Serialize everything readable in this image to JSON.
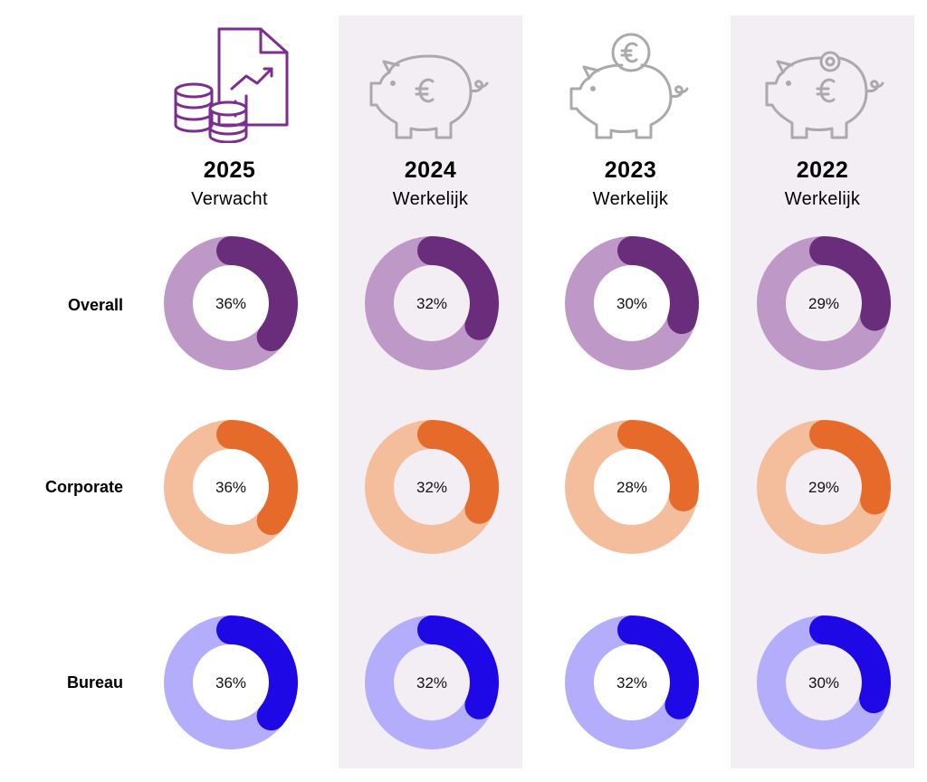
{
  "colors": {
    "overall": {
      "track": "#be98c6",
      "fill": "#6a2d7c"
    },
    "corporate": {
      "track": "#f4bd9c",
      "fill": "#e66b2b"
    },
    "bureau": {
      "track": "#b3adfb",
      "fill": "#1e08e6"
    },
    "column_highlight": "#f3eef4",
    "icon_active": "#7a2e8e",
    "icon_muted": "#aaaaaa"
  },
  "rows": [
    {
      "key": "overall",
      "label": "Overall"
    },
    {
      "key": "corporate",
      "label": "Corporate"
    },
    {
      "key": "bureau",
      "label": "Bureau"
    }
  ],
  "columns": [
    {
      "year": "2025",
      "subtitle": "Verwacht",
      "icon": "money-stack-report-icon",
      "highlight": false
    },
    {
      "year": "2024",
      "subtitle": "Werkelijk",
      "icon": "piggy-bank-euro-icon",
      "highlight": true
    },
    {
      "year": "2023",
      "subtitle": "Werkelijk",
      "icon": "piggy-bank-coin-icon",
      "highlight": false
    },
    {
      "year": "2022",
      "subtitle": "Werkelijk",
      "icon": "piggy-bank-slot-icon",
      "highlight": true
    }
  ],
  "chart_data": {
    "type": "donut",
    "categories": [
      "2025",
      "2024",
      "2023",
      "2022"
    ],
    "series": [
      {
        "name": "Overall",
        "values": [
          36,
          32,
          30,
          29
        ],
        "labels": [
          "36%",
          "32%",
          "30%",
          "29%"
        ]
      },
      {
        "name": "Corporate",
        "values": [
          36,
          32,
          28,
          29
        ],
        "labels": [
          "36%",
          "32%",
          "28%",
          "29%"
        ]
      },
      {
        "name": "Bureau",
        "values": [
          36,
          32,
          32,
          30
        ],
        "labels": [
          "36%",
          "32%",
          "32%",
          "30%"
        ]
      }
    ],
    "unit": "%"
  }
}
